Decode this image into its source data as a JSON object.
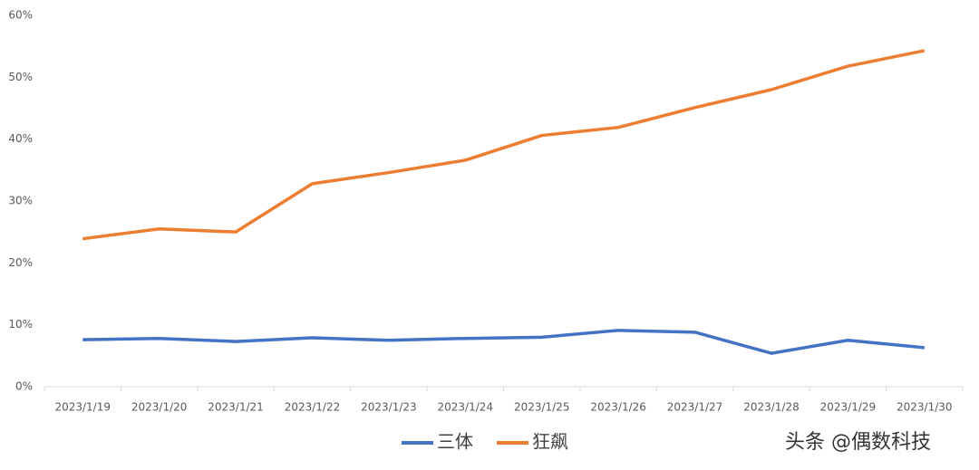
{
  "chart_data": {
    "type": "line",
    "categories": [
      "2023/1/19",
      "2023/1/20",
      "2023/1/21",
      "2023/1/22",
      "2023/1/23",
      "2023/1/24",
      "2023/1/25",
      "2023/1/26",
      "2023/1/27",
      "2023/1/28",
      "2023/1/29",
      "2023/1/30"
    ],
    "series": [
      {
        "name": "三体",
        "color": "#4472c4",
        "values": [
          7.6,
          7.8,
          7.3,
          7.9,
          7.5,
          7.8,
          8.0,
          9.1,
          8.8,
          5.4,
          7.5,
          6.3
        ]
      },
      {
        "name": "狂飙",
        "color": "#ed7d31",
        "values": [
          23.9,
          25.5,
          25.0,
          32.8,
          34.6,
          36.6,
          40.6,
          41.9,
          45.1,
          48.0,
          51.8,
          54.3
        ]
      }
    ],
    "ylim": [
      0,
      60
    ],
    "yticks": [
      {
        "value": 0,
        "label": "0%"
      },
      {
        "value": 10,
        "label": "10%"
      },
      {
        "value": 20,
        "label": "20%"
      },
      {
        "value": 30,
        "label": "30%"
      },
      {
        "value": 40,
        "label": "40%"
      },
      {
        "value": 50,
        "label": "50%"
      },
      {
        "value": 60,
        "label": "60%"
      }
    ],
    "grid": false,
    "legend": "bottom",
    "watermark": "头条 @偶数科技"
  }
}
